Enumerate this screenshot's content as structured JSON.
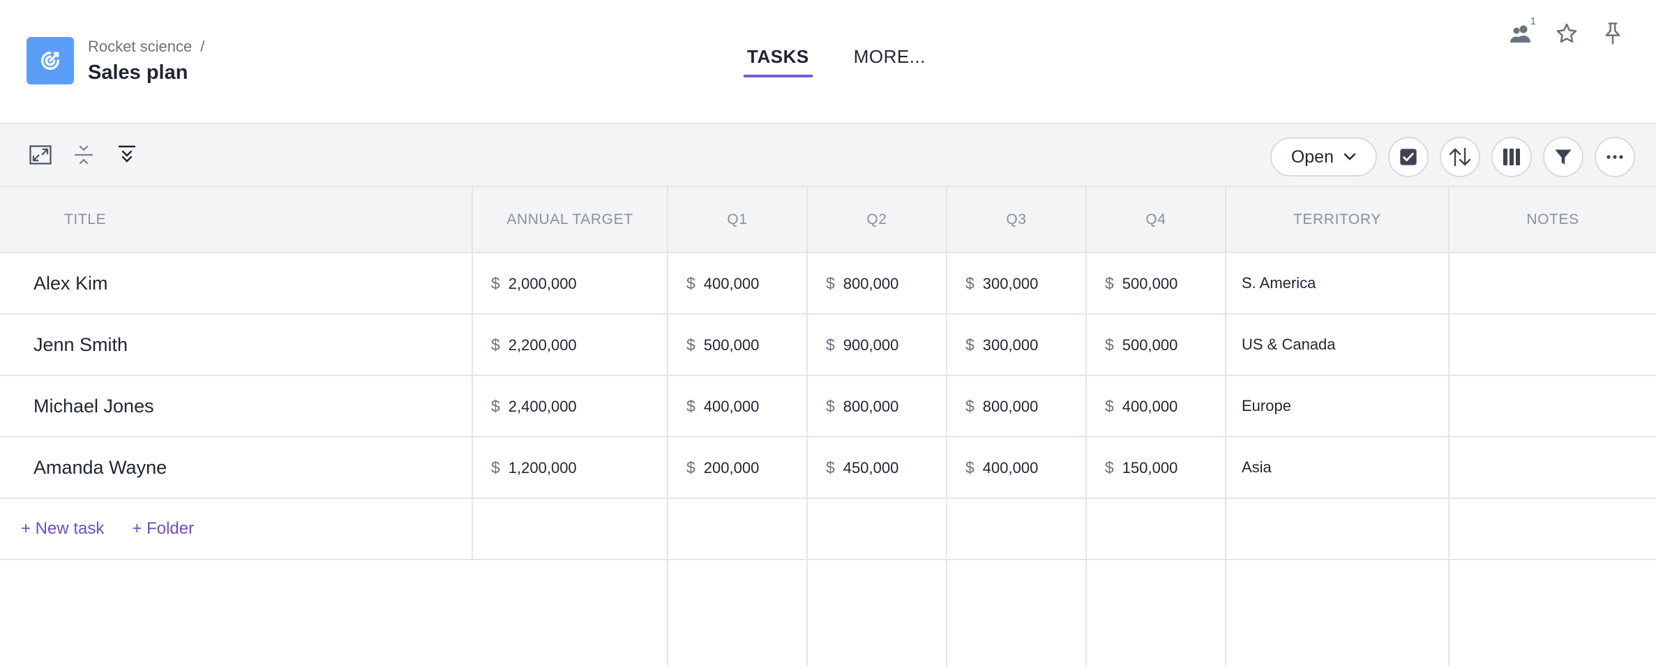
{
  "header": {
    "breadcrumb": "Rocket science",
    "breadcrumb_sep": "/",
    "title": "Sales plan",
    "tabs": [
      {
        "label": "TASKS",
        "active": true
      },
      {
        "label": "MORE..."
      }
    ],
    "members_badge": "1",
    "icons": {
      "app": "target-icon",
      "members": "users-icon",
      "favorite": "star-icon",
      "pin": "pin-icon"
    },
    "accent_color": "#7b5cd6",
    "app_icon_color": "#5b9ef7"
  },
  "toolbar": {
    "status_filter": "Open",
    "left_icons": [
      "expand-icon",
      "collapse-rows-icon",
      "expand-all-icon"
    ],
    "right_icons": [
      "checkbox-icon",
      "sort-icon",
      "columns-icon",
      "filter-icon",
      "more-icon"
    ]
  },
  "table": {
    "columns": [
      "TITLE",
      "ANNUAL TARGET",
      "Q1",
      "Q2",
      "Q3",
      "Q4",
      "TERRITORY",
      "NOTES"
    ],
    "currency_symbol": "$",
    "rows": [
      {
        "title": "Alex Kim",
        "annual": "2,000,000",
        "q1": "400,000",
        "q2": "800,000",
        "q3": "300,000",
        "q4": "500,000",
        "territory": "S. America",
        "notes": ""
      },
      {
        "title": "Jenn Smith",
        "annual": "2,200,000",
        "q1": "500,000",
        "q2": "900,000",
        "q3": "300,000",
        "q4": "500,000",
        "territory": "US & Canada",
        "notes": ""
      },
      {
        "title": "Michael Jones",
        "annual": "2,400,000",
        "q1": "400,000",
        "q2": "800,000",
        "q3": "800,000",
        "q4": "400,000",
        "territory": "Europe",
        "notes": ""
      },
      {
        "title": "Amanda Wayne",
        "annual": "1,200,000",
        "q1": "200,000",
        "q2": "450,000",
        "q3": "400,000",
        "q4": "150,000",
        "territory": "Asia",
        "notes": ""
      }
    ],
    "add_task_label": "+ New task",
    "add_folder_label": "+ Folder"
  }
}
